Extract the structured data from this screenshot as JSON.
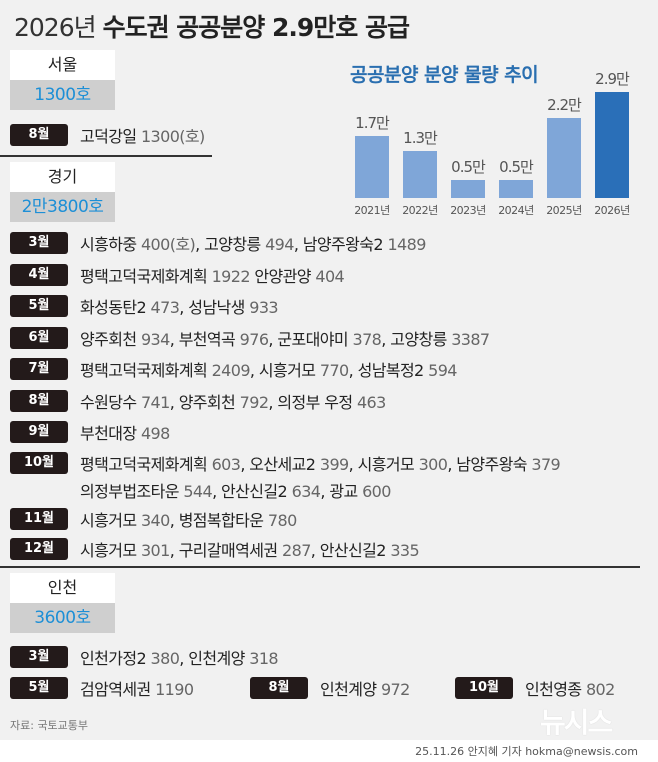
{
  "title": {
    "year": "2026년",
    "main": "수도권 공공분양 2.9만호 공급"
  },
  "seoul": {
    "name": "서울",
    "total": "1300호",
    "rows": [
      {
        "month": "8월",
        "text": "고덕강일 ",
        "num": "1300(호)"
      }
    ]
  },
  "gyeonggi": {
    "name": "경기",
    "total": "2만3800호",
    "rows": [
      {
        "month": "3월",
        "parts": [
          [
            "시흥하중 ",
            "400(호)"
          ],
          [
            ", 고양창릉 ",
            "494"
          ],
          [
            ", 남양주왕숙2 ",
            "1489"
          ]
        ]
      },
      {
        "month": "4월",
        "parts": [
          [
            "평택고덕국제화계획 ",
            "1922"
          ],
          [
            " 안양관양 ",
            "404"
          ]
        ]
      },
      {
        "month": "5월",
        "parts": [
          [
            "화성동탄2 ",
            "473"
          ],
          [
            ", 성남낙생 ",
            "933"
          ]
        ]
      },
      {
        "month": "6월",
        "parts": [
          [
            "양주회천 ",
            "934"
          ],
          [
            ", 부천역곡 ",
            "976"
          ],
          [
            ", 군포대야미 ",
            "378"
          ],
          [
            ", 고양창릉 ",
            "3387"
          ]
        ]
      },
      {
        "month": "7월",
        "parts": [
          [
            "평택고덕국제화계획 ",
            "2409"
          ],
          [
            ", 시흥거모 ",
            "770"
          ],
          [
            ", 성남복정2 ",
            "594"
          ]
        ]
      },
      {
        "month": "8월",
        "parts": [
          [
            "수원당수 ",
            "741"
          ],
          [
            ", 양주회천 ",
            "792"
          ],
          [
            ", 의정부 우정 ",
            "463"
          ]
        ]
      },
      {
        "month": "9월",
        "parts": [
          [
            "부천대장 ",
            "498"
          ]
        ]
      },
      {
        "month": "10월",
        "parts": [
          [
            "평택고덕국제화계획 ",
            "603"
          ],
          [
            ", 오산세교2 ",
            "399"
          ],
          [
            ", 시흥거모 ",
            "300"
          ],
          [
            ", 남양주왕숙 ",
            "379"
          ]
        ],
        "parts2": [
          [
            "의정부법조타운 ",
            "544"
          ],
          [
            ", 안산신길2 ",
            "634"
          ],
          [
            ", 광교 ",
            "600"
          ]
        ]
      },
      {
        "month": "11월",
        "parts": [
          [
            "시흥거모 ",
            "340"
          ],
          [
            ", 병점복합타운 ",
            "780"
          ]
        ]
      },
      {
        "month": "12월",
        "parts": [
          [
            "시흥거모 ",
            "301"
          ],
          [
            ", 구리갈매역세권 ",
            "287"
          ],
          [
            ", 안산신길2 ",
            "335"
          ]
        ]
      }
    ]
  },
  "incheon": {
    "name": "인천",
    "total": "3600호",
    "rows": [
      {
        "month": "3월",
        "parts": [
          [
            "인천가정2 ",
            "380"
          ],
          [
            ", 인천계양 ",
            "318"
          ]
        ]
      },
      {
        "month": "5월",
        "parts": [
          [
            "검암역세권 ",
            "1190"
          ]
        ]
      },
      {
        "month": "8월",
        "parts": [
          [
            "인천계양 ",
            "972"
          ]
        ]
      },
      {
        "month": "10월",
        "parts": [
          [
            "인천영종 ",
            "802"
          ]
        ]
      }
    ]
  },
  "chart_data": {
    "type": "bar",
    "title": "공공분양 분양 물량 추이",
    "categories": [
      "2021년",
      "2022년",
      "2023년",
      "2024년",
      "2025년",
      "2026년"
    ],
    "values": [
      1.7,
      1.3,
      0.5,
      0.5,
      2.2,
      2.9
    ],
    "labels": [
      "1.7만",
      "1.3만",
      "0.5만",
      "0.5만",
      "2.2만",
      "2.9만"
    ],
    "unit": "만호",
    "highlight_color": "#2a6fb8",
    "bar_color": "#7fa6d8"
  },
  "footer": {
    "source": "자료: 국토교통부",
    "byline": "25.11.26 안지혜 기자 hokma@newsis.com",
    "logo": "뉴시스"
  }
}
